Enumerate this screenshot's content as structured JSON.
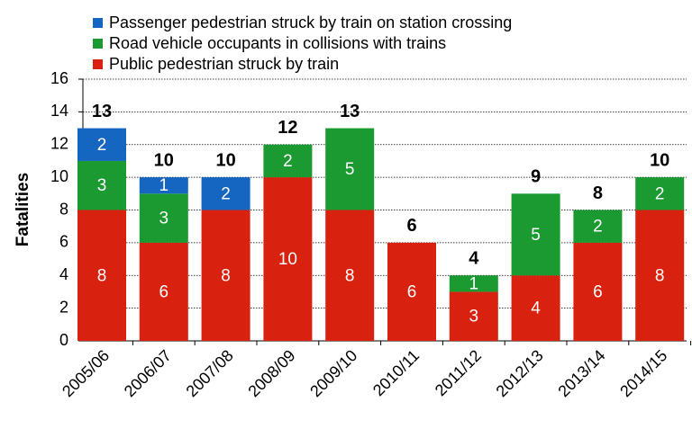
{
  "chart_data": {
    "type": "stacked_bar",
    "y_label": "Fatalities",
    "categories": [
      "2005/06",
      "2006/07",
      "2007/08",
      "2008/09",
      "2009/10",
      "2010/11",
      "2011/12",
      "2012/13",
      "2013/14",
      "2014/15"
    ],
    "series": [
      {
        "name": "Public pedestrian struck by train",
        "color": "#d9210f",
        "values": [
          8,
          6,
          8,
          10,
          8,
          6,
          3,
          4,
          6,
          8
        ]
      },
      {
        "name": "Road vehicle occupants in collisions with trains",
        "color": "#1b9a31",
        "values": [
          3,
          3,
          0,
          2,
          5,
          0,
          1,
          5,
          2,
          2
        ]
      },
      {
        "name": "Passenger pedestrian struck by train on station crossing",
        "color": "#1466c1",
        "values": [
          2,
          1,
          2,
          0,
          0,
          0,
          0,
          0,
          0,
          0
        ]
      }
    ],
    "totals": [
      13,
      10,
      10,
      12,
      13,
      6,
      4,
      9,
      8,
      10
    ],
    "ylim": [
      0,
      16
    ],
    "yticks": [
      0,
      2,
      4,
      6,
      8,
      10,
      12,
      14,
      16
    ],
    "grid": true,
    "legend": "top"
  }
}
